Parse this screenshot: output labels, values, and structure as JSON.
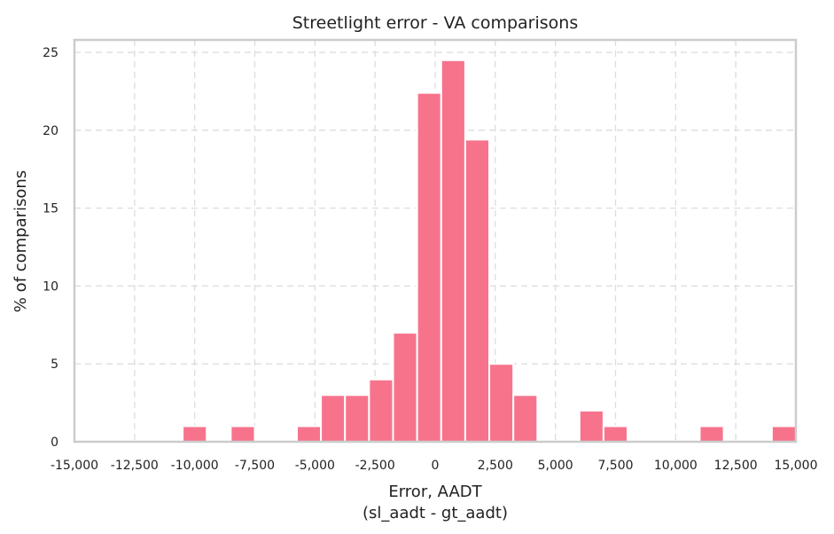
{
  "chart_data": {
    "type": "bar",
    "title": "Streetlight error - VA comparisons",
    "xlabel_lines": [
      "Error, AADT",
      "(sl_aadt - gt_aadt)"
    ],
    "ylabel": "% of comparisons",
    "xlim": [
      -15000,
      15000
    ],
    "ylim": [
      0,
      25.8
    ],
    "xticks": [
      -15000,
      -12500,
      -10000,
      -7500,
      -5000,
      -2500,
      0,
      2500,
      5000,
      7500,
      10000,
      12500,
      15000
    ],
    "xtick_labels": [
      "-15,000",
      "-12,500",
      "-10,000",
      "-7,500",
      "-5,000",
      "-2,500",
      "0",
      "2,500",
      "5,000",
      "7,500",
      "10,000",
      "12,500",
      "15,000"
    ],
    "yticks": [
      0,
      5,
      10,
      15,
      20,
      25
    ],
    "ytick_labels": [
      "0",
      "5",
      "10",
      "15",
      "20",
      "25"
    ],
    "grid": true,
    "bar_color": "#f7738c",
    "bins": [
      {
        "x0": -10500,
        "x1": -9500,
        "value": 1
      },
      {
        "x0": -8500,
        "x1": -7500,
        "value": 1
      },
      {
        "x0": -5750,
        "x1": -4750,
        "value": 1
      },
      {
        "x0": -4750,
        "x1": -3750,
        "value": 3
      },
      {
        "x0": -3750,
        "x1": -2750,
        "value": 3
      },
      {
        "x0": -2750,
        "x1": -1750,
        "value": 4
      },
      {
        "x0": -1750,
        "x1": -750,
        "value": 7
      },
      {
        "x0": -750,
        "x1": 250,
        "value": 22.4
      },
      {
        "x0": 250,
        "x1": 1250,
        "value": 24.5
      },
      {
        "x0": 1250,
        "x1": 2250,
        "value": 19.4
      },
      {
        "x0": 2250,
        "x1": 3250,
        "value": 5
      },
      {
        "x0": 3250,
        "x1": 4250,
        "value": 3
      },
      {
        "x0": 6000,
        "x1": 7000,
        "value": 2
      },
      {
        "x0": 7000,
        "x1": 8000,
        "value": 1
      },
      {
        "x0": 11000,
        "x1": 12000,
        "value": 1
      },
      {
        "x0": 14000,
        "x1": 15000,
        "value": 1
      }
    ]
  }
}
